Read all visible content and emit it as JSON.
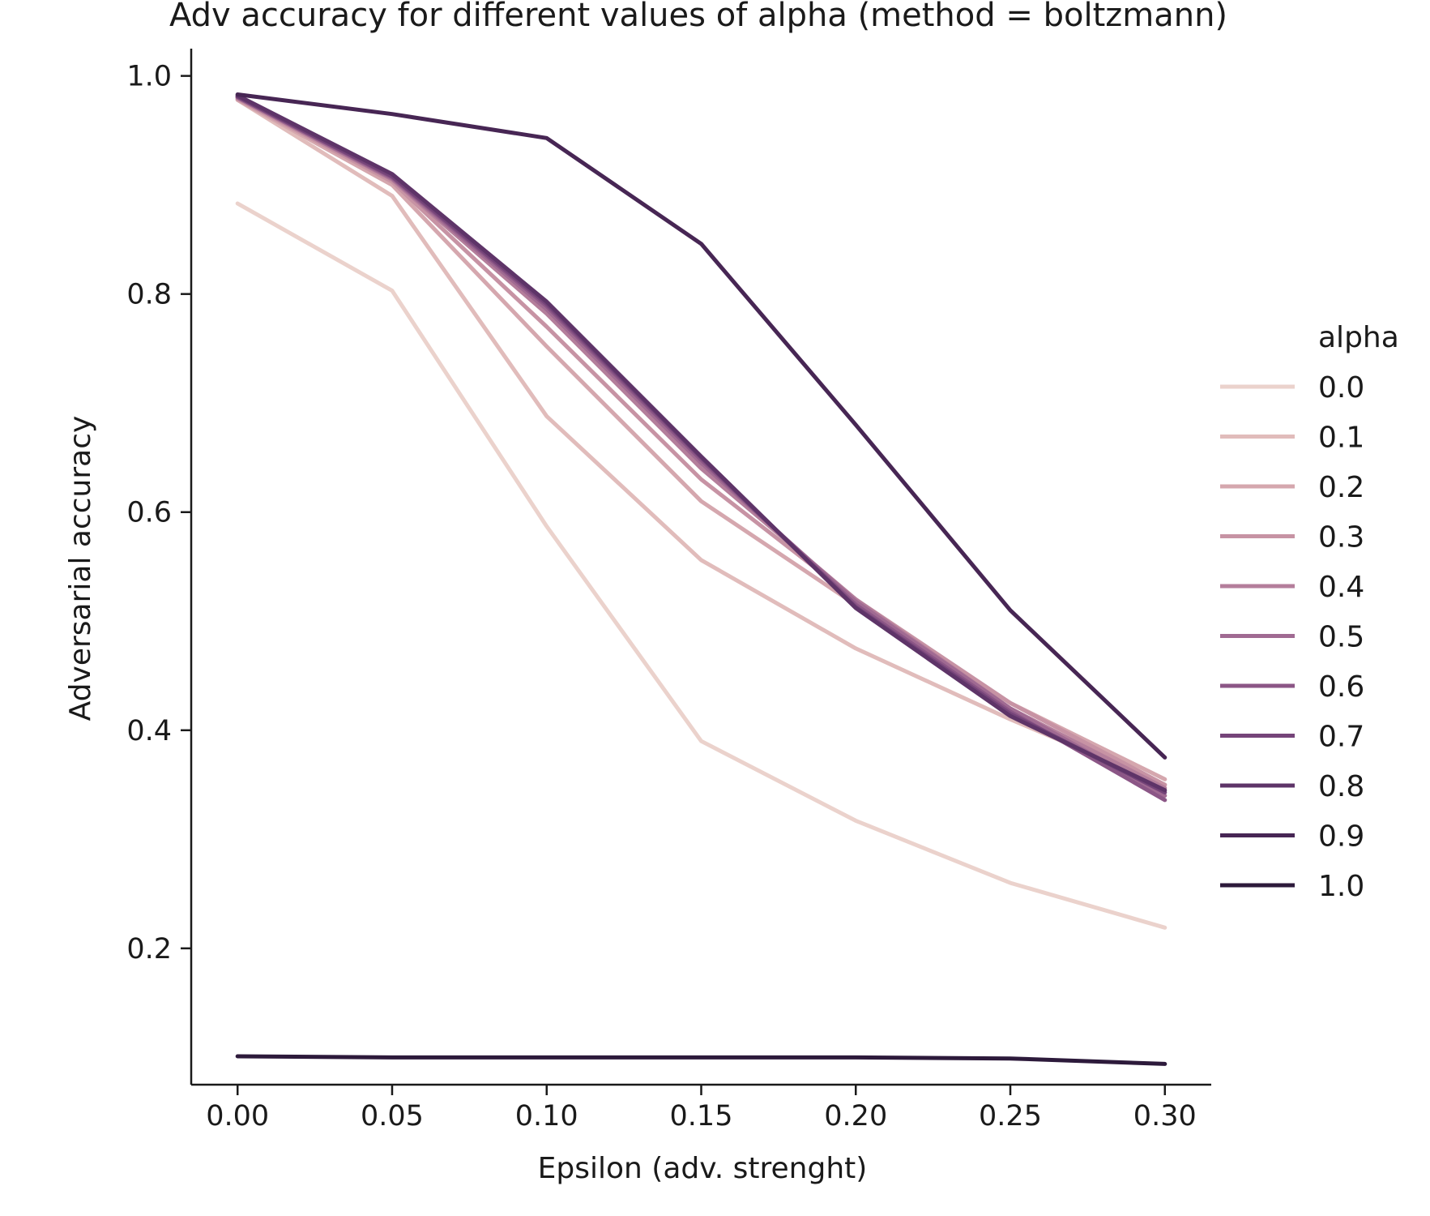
{
  "chart_data": {
    "type": "line",
    "title": "Adv accuracy for different values of alpha (method = boltzmann)",
    "xlabel": "Epsilon (adv. strenght)",
    "ylabel": "Adversarial accuracy",
    "xlim": [
      -0.015,
      0.315
    ],
    "ylim": [
      0.075,
      1.025
    ],
    "xticks": [
      0.0,
      0.05,
      0.1,
      0.15,
      0.2,
      0.25,
      0.3
    ],
    "xtick_labels": [
      "0.00",
      "0.05",
      "0.10",
      "0.15",
      "0.20",
      "0.25",
      "0.30"
    ],
    "yticks": [
      0.2,
      0.4,
      0.6,
      0.8,
      1.0
    ],
    "ytick_labels": [
      "0.2",
      "0.4",
      "0.6",
      "0.8",
      "1.0"
    ],
    "grid": false,
    "legend_title": "alpha",
    "legend_position": "right",
    "x": [
      0.0,
      0.05,
      0.1,
      0.15,
      0.2,
      0.25,
      0.3
    ],
    "series": [
      {
        "name": "0.0",
        "color": "#ebd2cc",
        "values": [
          0.883,
          0.803,
          0.587,
          0.39,
          0.317,
          0.26,
          0.219
        ]
      },
      {
        "name": "0.1",
        "color": "#e1bcbb",
        "values": [
          0.978,
          0.89,
          0.688,
          0.556,
          0.475,
          0.41,
          0.35
        ]
      },
      {
        "name": "0.2",
        "color": "#d5a7ae",
        "values": [
          0.978,
          0.9,
          0.752,
          0.61,
          0.515,
          0.425,
          0.355
        ]
      },
      {
        "name": "0.3",
        "color": "#c793a4",
        "values": [
          0.979,
          0.903,
          0.77,
          0.63,
          0.52,
          0.425,
          0.35
        ]
      },
      {
        "name": "0.4",
        "color": "#b47e9b",
        "values": [
          0.98,
          0.905,
          0.782,
          0.64,
          0.52,
          0.42,
          0.347
        ]
      },
      {
        "name": "0.5",
        "color": "#a06a92",
        "values": [
          0.98,
          0.906,
          0.786,
          0.645,
          0.518,
          0.42,
          0.34
        ]
      },
      {
        "name": "0.6",
        "color": "#8b5686",
        "values": [
          0.981,
          0.907,
          0.789,
          0.648,
          0.515,
          0.417,
          0.336
        ]
      },
      {
        "name": "0.7",
        "color": "#754479",
        "values": [
          0.981,
          0.908,
          0.791,
          0.65,
          0.513,
          0.415,
          0.343
        ]
      },
      {
        "name": "0.8",
        "color": "#5e3468",
        "values": [
          0.982,
          0.91,
          0.793,
          0.651,
          0.512,
          0.413,
          0.345
        ]
      },
      {
        "name": "0.9",
        "color": "#472654",
        "values": [
          0.983,
          0.965,
          0.943,
          0.846,
          0.68,
          0.51,
          0.375
        ]
      },
      {
        "name": "1.0",
        "color": "#2d1a3b",
        "values": [
          0.101,
          0.1,
          0.1,
          0.1,
          0.1,
          0.099,
          0.094
        ]
      }
    ]
  }
}
